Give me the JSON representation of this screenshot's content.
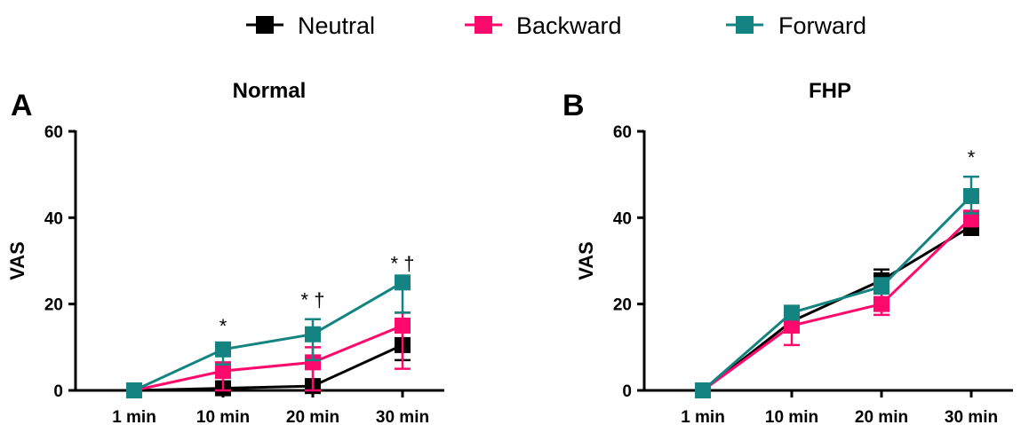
{
  "legend": [
    {
      "name": "Neutral",
      "color": "#000000"
    },
    {
      "name": "Backward",
      "color": "#ff0a6c"
    },
    {
      "name": "Forward",
      "color": "#138482"
    }
  ],
  "chart_data": [
    {
      "type": "line",
      "panel_letter": "A",
      "title": "Normal",
      "ylabel": "VAS",
      "xlabel": "",
      "ylim": [
        0,
        60
      ],
      "yticks": [
        0,
        20,
        40,
        60
      ],
      "categories": [
        "1 min",
        "10 min",
        "20 min",
        "30 min"
      ],
      "series": [
        {
          "name": "Neutral",
          "color": "#000000",
          "values": [
            0,
            0.5,
            1,
            10.5
          ],
          "err_low": [
            0,
            0.5,
            1,
            3.5
          ],
          "err_high": [
            0,
            0.5,
            1,
            3.5
          ]
        },
        {
          "name": "Backward",
          "color": "#ff0a6c",
          "values": [
            0,
            4.5,
            6.5,
            15
          ],
          "err_low": [
            0,
            4.5,
            6.5,
            10
          ],
          "err_high": [
            0,
            2,
            3.5,
            3
          ]
        },
        {
          "name": "Forward",
          "color": "#138482",
          "values": [
            0,
            9.5,
            13,
            25
          ],
          "err_low": [
            0,
            3.5,
            6,
            7
          ],
          "err_high": [
            0,
            1,
            3.5,
            0
          ]
        }
      ],
      "annotations": [
        {
          "category": "10 min",
          "text": "*"
        },
        {
          "category": "20 min",
          "text": "* †"
        },
        {
          "category": "30 min",
          "text": "* †"
        }
      ]
    },
    {
      "type": "line",
      "panel_letter": "B",
      "title": "FHP",
      "ylabel": "VAS",
      "xlabel": "",
      "ylim": [
        0,
        60
      ],
      "yticks": [
        0,
        20,
        40,
        60
      ],
      "categories": [
        "1 min",
        "10 min",
        "20 min",
        "30 min"
      ],
      "series": [
        {
          "name": "Neutral",
          "color": "#000000",
          "values": [
            0,
            16,
            25.5,
            38
          ],
          "err_low": [
            0,
            1.5,
            2,
            2
          ],
          "err_high": [
            0,
            1.5,
            2.5,
            2
          ]
        },
        {
          "name": "Backward",
          "color": "#ff0a6c",
          "values": [
            0,
            15,
            20,
            40
          ],
          "err_low": [
            0,
            4.5,
            2.5,
            2
          ],
          "err_high": [
            0,
            2,
            2.5,
            1.5
          ]
        },
        {
          "name": "Forward",
          "color": "#138482",
          "values": [
            0,
            18,
            24,
            45
          ],
          "err_low": [
            0,
            1,
            1.5,
            4
          ],
          "err_high": [
            0,
            1,
            2,
            4.5
          ]
        }
      ],
      "annotations": [
        {
          "category": "30 min",
          "text": "*"
        }
      ]
    }
  ]
}
